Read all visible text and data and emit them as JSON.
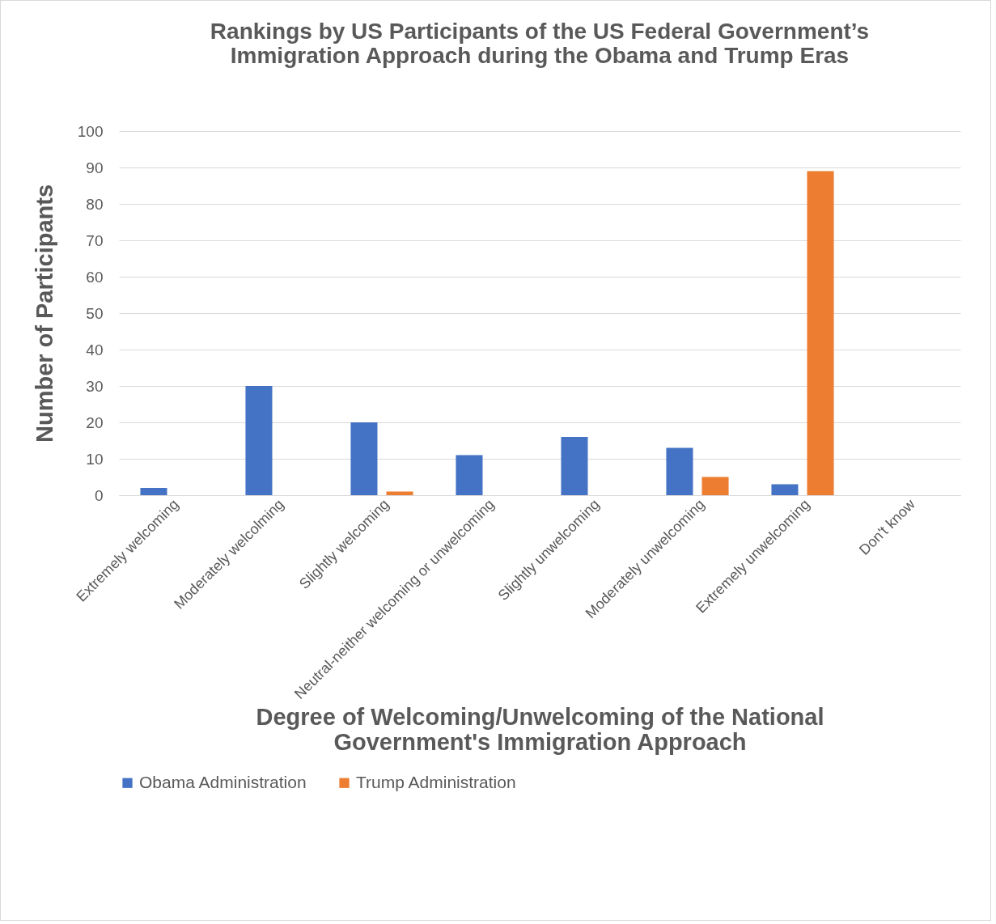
{
  "chart_data": {
    "type": "bar",
    "title": "Rankings by US Participants of the US Federal Government’s\nImmigration Approach during the Obama and Trump Eras",
    "xlabel": "Degree of Welcoming/Unwelcoming of the National\nGovernment's Immigration Approach",
    "ylabel": "Number of Participants",
    "categories": [
      "Extremely welcoming",
      "Moderately welcolming",
      "Slightly welcoming",
      "Neutral-neither welcoming or unwelcoming",
      "Slightly unwelcoming",
      "Moderately unwelcoming",
      "Extremely unwelcoming",
      "Don't know"
    ],
    "series": [
      {
        "name": "Obama Administration",
        "color": "#4472c4",
        "values": [
          2,
          30,
          20,
          11,
          16,
          13,
          3,
          0
        ]
      },
      {
        "name": "Trump Administration",
        "color": "#ed7d31",
        "values": [
          0,
          0,
          1,
          0,
          0,
          5,
          89,
          0
        ]
      }
    ],
    "ylim": [
      0,
      100
    ],
    "yticks": [
      0,
      10,
      20,
      30,
      40,
      50,
      60,
      70,
      80,
      90,
      100
    ],
    "grid": "y",
    "legend": "bottom"
  }
}
